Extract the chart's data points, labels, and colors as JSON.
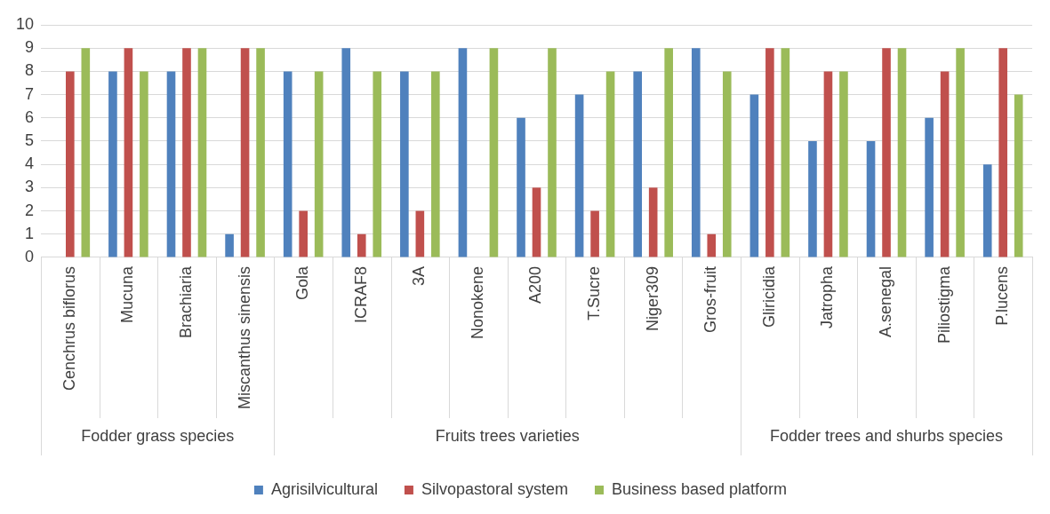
{
  "chart_data": {
    "type": "bar",
    "categories": [
      "Cenchrus biflorus",
      "Mucuna",
      "Brachiaria",
      "Miscanthus sinensis",
      "Gola",
      "ICRAF8",
      "3A",
      "Nonokene",
      "A200",
      "T.Sucre",
      "Niger309",
      "Gros-fruit",
      "Gliricidia",
      "Jatropha",
      "A.senegal",
      "Piliostigma",
      "P.lucens"
    ],
    "series": [
      {
        "name": "Agrisilvicultural",
        "color": "#4f81bd",
        "values": [
          0,
          8,
          8,
          1,
          8,
          9,
          8,
          9,
          6,
          7,
          8,
          9,
          7,
          5,
          5,
          6,
          4
        ]
      },
      {
        "name": "Silvopastoral system",
        "color": "#c0504d",
        "values": [
          8,
          9,
          9,
          9,
          2,
          1,
          2,
          0,
          3,
          2,
          3,
          1,
          9,
          8,
          9,
          8,
          9
        ]
      },
      {
        "name": "Business based platform",
        "color": "#9bbb59",
        "values": [
          9,
          8,
          9,
          9,
          8,
          8,
          8,
          9,
          9,
          8,
          9,
          8,
          9,
          8,
          9,
          9,
          7
        ]
      }
    ],
    "annotations": [
      "Fodder grass species",
      "Fruits trees varieties",
      "Fodder trees and shurbs species"
    ],
    "ylim": [
      0,
      10
    ],
    "yticks": [
      0,
      1,
      2,
      3,
      4,
      5,
      6,
      7,
      8,
      9,
      10
    ],
    "grid": "y",
    "legend": "bottom"
  }
}
